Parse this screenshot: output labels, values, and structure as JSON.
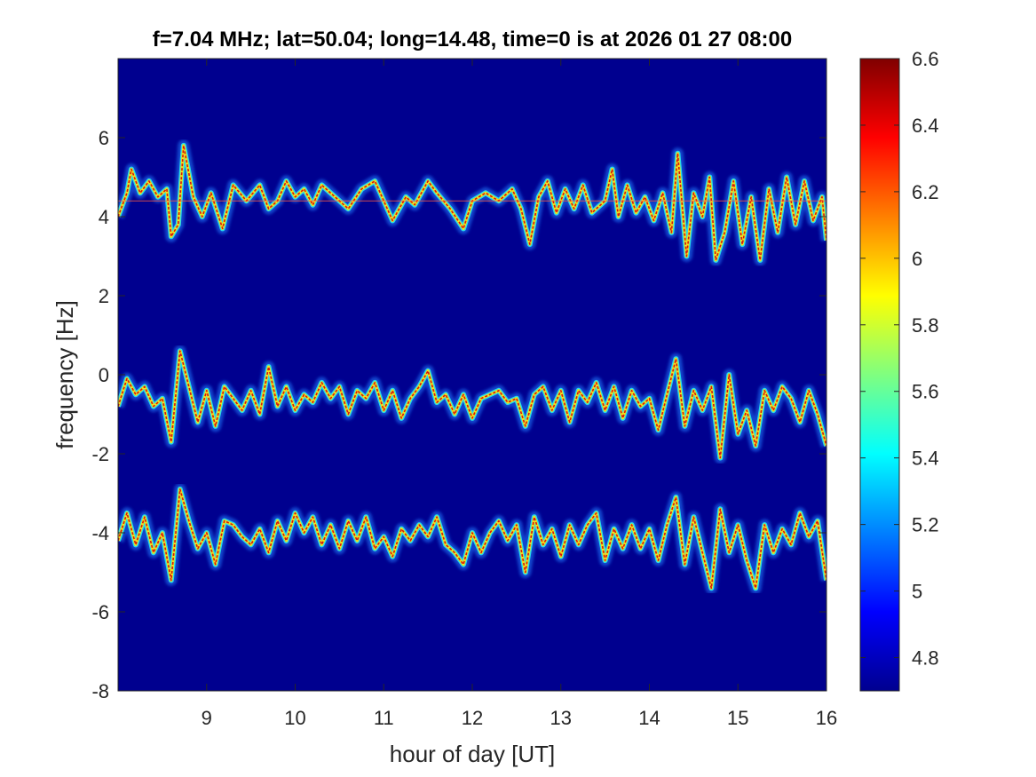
{
  "chart_data": {
    "type": "heatmap",
    "title": "f=7.04 MHz;  lat=50.04; long=14.48, time=0 is at 2026 01 27 08:00",
    "xlabel": "hour of day [UT]",
    "ylabel": "frequency [Hz]",
    "xlim": [
      8,
      16
    ],
    "ylim": [
      -8,
      8
    ],
    "x_ticks": [
      9,
      10,
      11,
      12,
      13,
      14,
      15,
      16
    ],
    "y_ticks": [
      -8,
      -6,
      -4,
      -2,
      0,
      2,
      4,
      6
    ],
    "colorbar": {
      "colormap": "jet",
      "clim": [
        4.7,
        6.6
      ],
      "ticks": [
        4.8,
        5,
        5.2,
        5.4,
        5.6,
        5.8,
        6,
        6.2,
        6.4,
        6.6
      ]
    },
    "background_color": "#00008f",
    "traces": [
      {
        "name": "",
        "center_hz": 4.4,
        "points": [
          [
            8.0,
            4.0
          ],
          [
            8.1,
            4.6
          ],
          [
            8.15,
            5.2
          ],
          [
            8.25,
            4.6
          ],
          [
            8.35,
            4.9
          ],
          [
            8.45,
            4.5
          ],
          [
            8.55,
            4.7
          ],
          [
            8.6,
            3.5
          ],
          [
            8.68,
            3.8
          ],
          [
            8.74,
            5.8
          ],
          [
            8.85,
            4.5
          ],
          [
            8.95,
            4.0
          ],
          [
            9.05,
            4.6
          ],
          [
            9.18,
            3.7
          ],
          [
            9.3,
            4.8
          ],
          [
            9.45,
            4.4
          ],
          [
            9.6,
            4.8
          ],
          [
            9.7,
            4.2
          ],
          [
            9.8,
            4.4
          ],
          [
            9.9,
            4.9
          ],
          [
            10.0,
            4.5
          ],
          [
            10.1,
            4.7
          ],
          [
            10.2,
            4.3
          ],
          [
            10.3,
            4.8
          ],
          [
            10.45,
            4.5
          ],
          [
            10.6,
            4.2
          ],
          [
            10.75,
            4.7
          ],
          [
            10.9,
            4.9
          ],
          [
            11.0,
            4.4
          ],
          [
            11.1,
            3.9
          ],
          [
            11.25,
            4.5
          ],
          [
            11.35,
            4.3
          ],
          [
            11.5,
            4.9
          ],
          [
            11.6,
            4.6
          ],
          [
            11.75,
            4.2
          ],
          [
            11.9,
            3.7
          ],
          [
            12.0,
            4.4
          ],
          [
            12.15,
            4.6
          ],
          [
            12.3,
            4.4
          ],
          [
            12.45,
            4.7
          ],
          [
            12.55,
            4.2
          ],
          [
            12.65,
            3.3
          ],
          [
            12.75,
            4.5
          ],
          [
            12.85,
            4.9
          ],
          [
            12.95,
            4.1
          ],
          [
            13.05,
            4.7
          ],
          [
            13.15,
            4.2
          ],
          [
            13.25,
            4.8
          ],
          [
            13.35,
            4.1
          ],
          [
            13.5,
            4.4
          ],
          [
            13.58,
            5.2
          ],
          [
            13.65,
            4.0
          ],
          [
            13.75,
            4.8
          ],
          [
            13.85,
            4.1
          ],
          [
            13.95,
            4.5
          ],
          [
            14.05,
            3.9
          ],
          [
            14.15,
            4.6
          ],
          [
            14.25,
            3.6
          ],
          [
            14.32,
            5.6
          ],
          [
            14.42,
            3.0
          ],
          [
            14.5,
            4.6
          ],
          [
            14.6,
            4.0
          ],
          [
            14.68,
            5.0
          ],
          [
            14.75,
            2.9
          ],
          [
            14.85,
            3.6
          ],
          [
            14.95,
            4.9
          ],
          [
            15.05,
            3.3
          ],
          [
            15.15,
            4.5
          ],
          [
            15.25,
            2.9
          ],
          [
            15.35,
            4.7
          ],
          [
            15.45,
            3.6
          ],
          [
            15.55,
            5.0
          ],
          [
            15.65,
            3.8
          ],
          [
            15.75,
            4.9
          ],
          [
            15.85,
            3.9
          ],
          [
            15.95,
            4.5
          ],
          [
            16.0,
            3.4
          ]
        ]
      },
      {
        "name": "",
        "center_hz": -0.5,
        "points": [
          [
            8.0,
            -0.8
          ],
          [
            8.1,
            -0.1
          ],
          [
            8.2,
            -0.5
          ],
          [
            8.3,
            -0.3
          ],
          [
            8.4,
            -0.8
          ],
          [
            8.5,
            -0.6
          ],
          [
            8.6,
            -1.7
          ],
          [
            8.7,
            0.6
          ],
          [
            8.8,
            -0.3
          ],
          [
            8.9,
            -1.2
          ],
          [
            9.0,
            -0.4
          ],
          [
            9.1,
            -1.3
          ],
          [
            9.2,
            -0.3
          ],
          [
            9.3,
            -0.6
          ],
          [
            9.4,
            -0.9
          ],
          [
            9.5,
            -0.4
          ],
          [
            9.6,
            -1.0
          ],
          [
            9.7,
            0.2
          ],
          [
            9.8,
            -0.8
          ],
          [
            9.9,
            -0.3
          ],
          [
            10.0,
            -0.9
          ],
          [
            10.1,
            -0.5
          ],
          [
            10.2,
            -0.7
          ],
          [
            10.3,
            -0.2
          ],
          [
            10.4,
            -0.6
          ],
          [
            10.5,
            -0.3
          ],
          [
            10.6,
            -1.0
          ],
          [
            10.7,
            -0.4
          ],
          [
            10.8,
            -0.6
          ],
          [
            10.9,
            -0.2
          ],
          [
            11.0,
            -0.9
          ],
          [
            11.1,
            -0.4
          ],
          [
            11.2,
            -1.1
          ],
          [
            11.3,
            -0.6
          ],
          [
            11.4,
            -0.3
          ],
          [
            11.5,
            0.1
          ],
          [
            11.6,
            -0.7
          ],
          [
            11.7,
            -0.5
          ],
          [
            11.8,
            -1.0
          ],
          [
            11.9,
            -0.5
          ],
          [
            12.0,
            -1.1
          ],
          [
            12.1,
            -0.6
          ],
          [
            12.2,
            -0.5
          ],
          [
            12.3,
            -0.4
          ],
          [
            12.4,
            -0.7
          ],
          [
            12.5,
            -0.6
          ],
          [
            12.6,
            -1.3
          ],
          [
            12.7,
            -0.5
          ],
          [
            12.8,
            -0.3
          ],
          [
            12.9,
            -0.9
          ],
          [
            13.0,
            -0.4
          ],
          [
            13.1,
            -1.2
          ],
          [
            13.2,
            -0.4
          ],
          [
            13.3,
            -0.7
          ],
          [
            13.4,
            -0.2
          ],
          [
            13.5,
            -0.9
          ],
          [
            13.6,
            -0.3
          ],
          [
            13.7,
            -1.1
          ],
          [
            13.8,
            -0.4
          ],
          [
            13.9,
            -0.8
          ],
          [
            14.0,
            -0.6
          ],
          [
            14.1,
            -1.4
          ],
          [
            14.2,
            -0.5
          ],
          [
            14.3,
            0.4
          ],
          [
            14.4,
            -1.3
          ],
          [
            14.5,
            -0.4
          ],
          [
            14.6,
            -0.9
          ],
          [
            14.7,
            -0.3
          ],
          [
            14.8,
            -2.1
          ],
          [
            14.9,
            0.0
          ],
          [
            15.0,
            -1.5
          ],
          [
            15.1,
            -0.9
          ],
          [
            15.2,
            -1.8
          ],
          [
            15.3,
            -0.4
          ],
          [
            15.4,
            -0.9
          ],
          [
            15.5,
            -0.3
          ],
          [
            15.6,
            -0.6
          ],
          [
            15.7,
            -1.2
          ],
          [
            15.8,
            -0.4
          ],
          [
            15.9,
            -1.0
          ],
          [
            16.0,
            -1.8
          ]
        ]
      },
      {
        "name": "",
        "center_hz": -4.2,
        "points": [
          [
            8.0,
            -4.2
          ],
          [
            8.1,
            -3.5
          ],
          [
            8.2,
            -4.3
          ],
          [
            8.3,
            -3.6
          ],
          [
            8.4,
            -4.5
          ],
          [
            8.5,
            -4.0
          ],
          [
            8.6,
            -5.2
          ],
          [
            8.7,
            -2.9
          ],
          [
            8.8,
            -3.7
          ],
          [
            8.9,
            -4.4
          ],
          [
            9.0,
            -4.0
          ],
          [
            9.1,
            -4.8
          ],
          [
            9.2,
            -3.7
          ],
          [
            9.3,
            -3.8
          ],
          [
            9.4,
            -4.1
          ],
          [
            9.5,
            -4.3
          ],
          [
            9.6,
            -3.9
          ],
          [
            9.7,
            -4.5
          ],
          [
            9.8,
            -3.7
          ],
          [
            9.9,
            -4.2
          ],
          [
            10.0,
            -3.5
          ],
          [
            10.1,
            -4.0
          ],
          [
            10.2,
            -3.6
          ],
          [
            10.3,
            -4.3
          ],
          [
            10.4,
            -3.8
          ],
          [
            10.5,
            -4.4
          ],
          [
            10.6,
            -3.7
          ],
          [
            10.7,
            -4.2
          ],
          [
            10.8,
            -3.6
          ],
          [
            10.9,
            -4.4
          ],
          [
            11.0,
            -4.1
          ],
          [
            11.1,
            -4.6
          ],
          [
            11.2,
            -3.9
          ],
          [
            11.3,
            -4.2
          ],
          [
            11.4,
            -3.8
          ],
          [
            11.5,
            -4.1
          ],
          [
            11.6,
            -3.6
          ],
          [
            11.7,
            -4.3
          ],
          [
            11.8,
            -4.5
          ],
          [
            11.9,
            -4.8
          ],
          [
            12.0,
            -4.0
          ],
          [
            12.1,
            -4.5
          ],
          [
            12.2,
            -4.0
          ],
          [
            12.3,
            -3.7
          ],
          [
            12.4,
            -4.2
          ],
          [
            12.5,
            -3.8
          ],
          [
            12.6,
            -5.0
          ],
          [
            12.7,
            -3.6
          ],
          [
            12.8,
            -4.3
          ],
          [
            12.9,
            -3.9
          ],
          [
            13.0,
            -4.6
          ],
          [
            13.1,
            -3.8
          ],
          [
            13.2,
            -4.3
          ],
          [
            13.3,
            -3.8
          ],
          [
            13.4,
            -3.5
          ],
          [
            13.5,
            -4.7
          ],
          [
            13.6,
            -3.9
          ],
          [
            13.7,
            -4.4
          ],
          [
            13.8,
            -3.8
          ],
          [
            13.9,
            -4.4
          ],
          [
            14.0,
            -3.9
          ],
          [
            14.1,
            -4.7
          ],
          [
            14.2,
            -3.8
          ],
          [
            14.3,
            -3.1
          ],
          [
            14.4,
            -4.8
          ],
          [
            14.5,
            -3.6
          ],
          [
            14.6,
            -4.5
          ],
          [
            14.7,
            -5.4
          ],
          [
            14.8,
            -3.4
          ],
          [
            14.9,
            -4.5
          ],
          [
            15.0,
            -3.8
          ],
          [
            15.1,
            -4.7
          ],
          [
            15.2,
            -5.4
          ],
          [
            15.3,
            -3.8
          ],
          [
            15.4,
            -4.5
          ],
          [
            15.5,
            -3.9
          ],
          [
            15.6,
            -4.3
          ],
          [
            15.7,
            -3.5
          ],
          [
            15.8,
            -4.1
          ],
          [
            15.9,
            -3.7
          ],
          [
            16.0,
            -5.2
          ]
        ]
      }
    ]
  }
}
